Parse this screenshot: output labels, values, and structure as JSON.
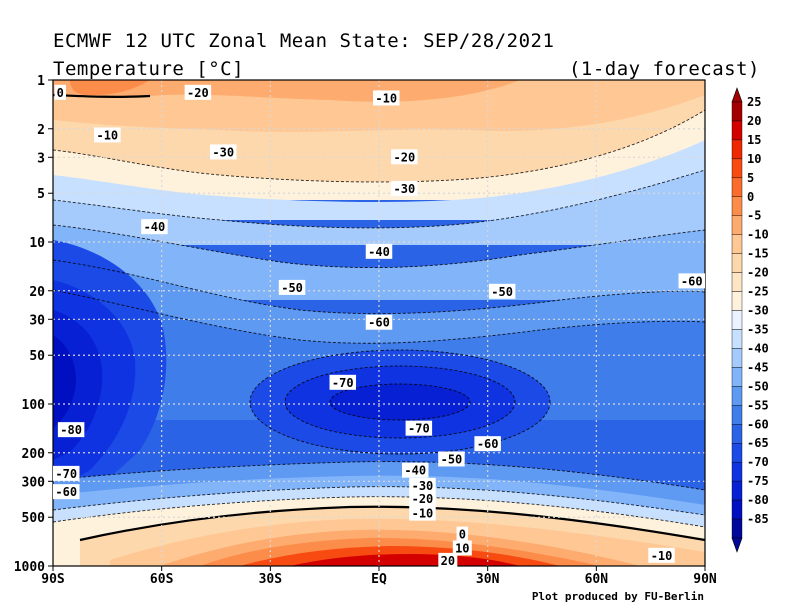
{
  "chart_data": {
    "type": "heatmap",
    "title": "ECMWF 12 UTC Zonal Mean State: SEP/28/2021",
    "subtitle": "Temperature [°C]",
    "forecast_label": "(1-day forecast)",
    "footer": "Plot produced by FU-Berlin",
    "x_ticks": [
      {
        "label": "90S",
        "lat": -90
      },
      {
        "label": "60S",
        "lat": -60
      },
      {
        "label": "30S",
        "lat": -30
      },
      {
        "label": "EQ",
        "lat": 0
      },
      {
        "label": "30N",
        "lat": 30
      },
      {
        "label": "60N",
        "lat": 60
      },
      {
        "label": "90N",
        "lat": 90
      }
    ],
    "y_ticks": [
      {
        "label": "1",
        "p": 1
      },
      {
        "label": "2",
        "p": 2
      },
      {
        "label": "3",
        "p": 3
      },
      {
        "label": "5",
        "p": 5
      },
      {
        "label": "10",
        "p": 10
      },
      {
        "label": "20",
        "p": 20
      },
      {
        "label": "30",
        "p": 30
      },
      {
        "label": "50",
        "p": 50
      },
      {
        "label": "100",
        "p": 100
      },
      {
        "label": "200",
        "p": 200
      },
      {
        "label": "300",
        "p": 300
      },
      {
        "label": "500",
        "p": 500
      },
      {
        "label": "1000",
        "p": 1000
      }
    ],
    "x_range": [
      -90,
      90
    ],
    "y_range_hPa": [
      1,
      1000
    ],
    "y_scale": "log",
    "grid": true,
    "colorbar_levels": [
      "25",
      "20",
      "15",
      "10",
      "5",
      "0",
      "-5",
      "-10",
      "-15",
      "-20",
      "-25",
      "-30",
      "-35",
      "-40",
      "-45",
      "-50",
      "-55",
      "-60",
      "-65",
      "-70",
      "-75",
      "-80",
      "-85"
    ],
    "colorbar_colors": [
      "#a50000",
      "#d40000",
      "#ee2800",
      "#f74b12",
      "#fb6c2c",
      "#fc8c4a",
      "#fdab6f",
      "#fec793",
      "#fed8ad",
      "#fee5c4",
      "#fff2dc",
      "#eaf3ff",
      "#c8e0ff",
      "#a5cbfd",
      "#82b4f9",
      "#5e99f2",
      "#3f7deb",
      "#2b63e6",
      "#1b4ae6",
      "#0f33e0",
      "#0720d4",
      "#0010c0",
      "#000899"
    ],
    "contour_labels": [
      {
        "text": "0",
        "lat": -88,
        "p": 1.2
      },
      {
        "text": "-20",
        "lat": -50,
        "p": 1.2
      },
      {
        "text": "-10",
        "lat": 2,
        "p": 1.3
      },
      {
        "text": "-10",
        "lat": -75,
        "p": 2.2
      },
      {
        "text": "-30",
        "lat": -43,
        "p": 2.8
      },
      {
        "text": "-20",
        "lat": 7,
        "p": 3.0
      },
      {
        "text": "-30",
        "lat": 7,
        "p": 4.7
      },
      {
        "text": "-40",
        "lat": -62,
        "p": 8.1
      },
      {
        "text": "-40",
        "lat": 0,
        "p": 11.5
      },
      {
        "text": "-50",
        "lat": -24,
        "p": 19.2
      },
      {
        "text": "-50",
        "lat": 34,
        "p": 20.3
      },
      {
        "text": "-60",
        "lat": 89,
        "p": 17.5
      },
      {
        "text": "-60",
        "lat": 0,
        "p": 31.5
      },
      {
        "text": "-70",
        "lat": -10,
        "p": 74
      },
      {
        "text": "-70",
        "lat": 11,
        "p": 142
      },
      {
        "text": "-80",
        "lat": -85,
        "p": 145
      },
      {
        "text": "-60",
        "lat": 30,
        "p": 177
      },
      {
        "text": "-50",
        "lat": 20,
        "p": 220
      },
      {
        "text": "-70",
        "lat": -87,
        "p": 270
      },
      {
        "text": "-40",
        "lat": 10,
        "p": 258
      },
      {
        "text": "-30",
        "lat": 12,
        "p": 320
      },
      {
        "text": "-60",
        "lat": -87,
        "p": 350
      },
      {
        "text": "-20",
        "lat": 12,
        "p": 385
      },
      {
        "text": "-10",
        "lat": 12,
        "p": 475
      },
      {
        "text": "0",
        "lat": 23,
        "p": 640
      },
      {
        "text": "10",
        "lat": 23,
        "p": 780
      },
      {
        "text": "-10",
        "lat": 78,
        "p": 865
      },
      {
        "text": "20",
        "lat": 19,
        "p": 930
      }
    ]
  }
}
